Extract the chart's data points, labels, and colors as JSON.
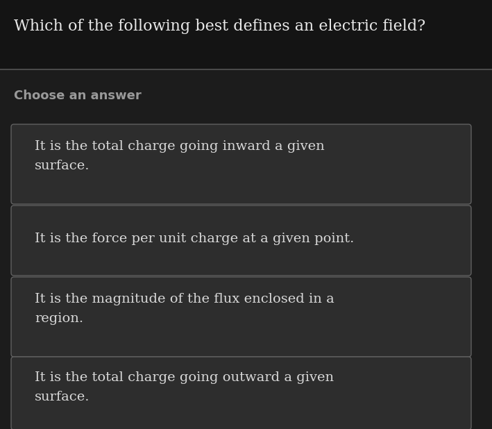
{
  "bg_color": "#1c1c1c",
  "title_area_bg": "#111111",
  "card_bg": "#2d2d2d",
  "card_border": "#606060",
  "title_text": "Which of the following best defines an electric field?",
  "title_color": "#e8e8e8",
  "title_fontsize": 16,
  "subtitle_text": "Choose an answer",
  "subtitle_color": "#999999",
  "subtitle_fontsize": 13,
  "answer_color": "#d8d8d8",
  "answer_fontsize": 14,
  "separator_color": "#555555",
  "answers": [
    "It is the total charge going inward a given\nsurface.",
    "It is the force per unit charge at a given point.",
    "It is the magnitude of the flux enclosed in a\nregion.",
    "It is the total charge going outward a given\nsurface."
  ]
}
